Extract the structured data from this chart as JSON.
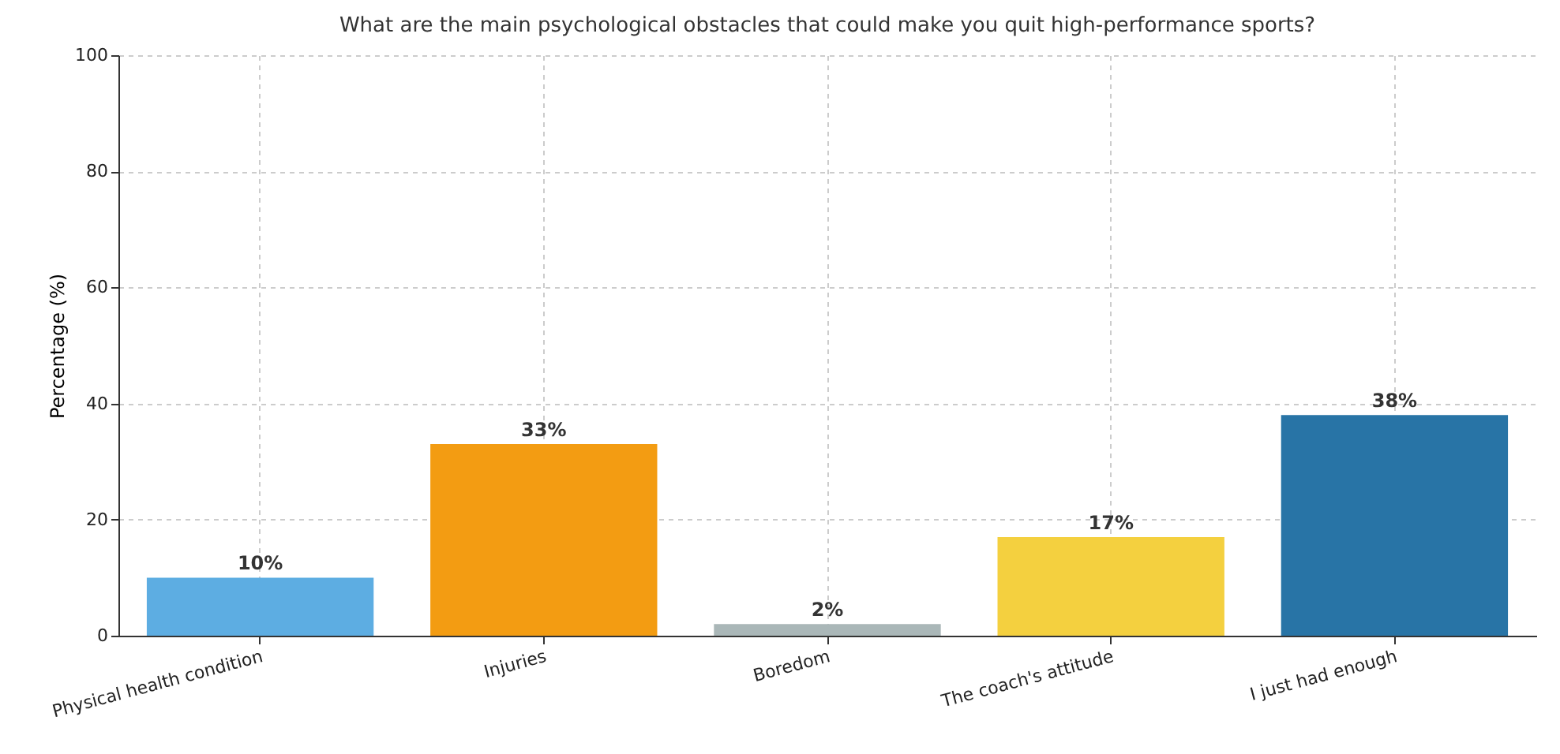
{
  "chart_data": {
    "type": "bar",
    "title": "What are the main psychological obstacles that could make you quit high-performance sports?",
    "ylabel": "Percentage (%)",
    "categories": [
      "Physical health condition",
      "Injuries",
      "Boredom",
      "The coach's attitude",
      "I just had enough"
    ],
    "values": [
      10,
      33,
      2,
      17,
      38
    ],
    "colors": [
      "#5dade2",
      "#f39c12",
      "#aab7b8",
      "#f4d03f",
      "#2874a6"
    ],
    "value_labels": [
      "10%",
      "33%",
      "2%",
      "17%",
      "38%"
    ],
    "ylim": [
      0,
      100
    ],
    "yticks": [
      0,
      20,
      40,
      60,
      80,
      100
    ],
    "grid": true
  }
}
